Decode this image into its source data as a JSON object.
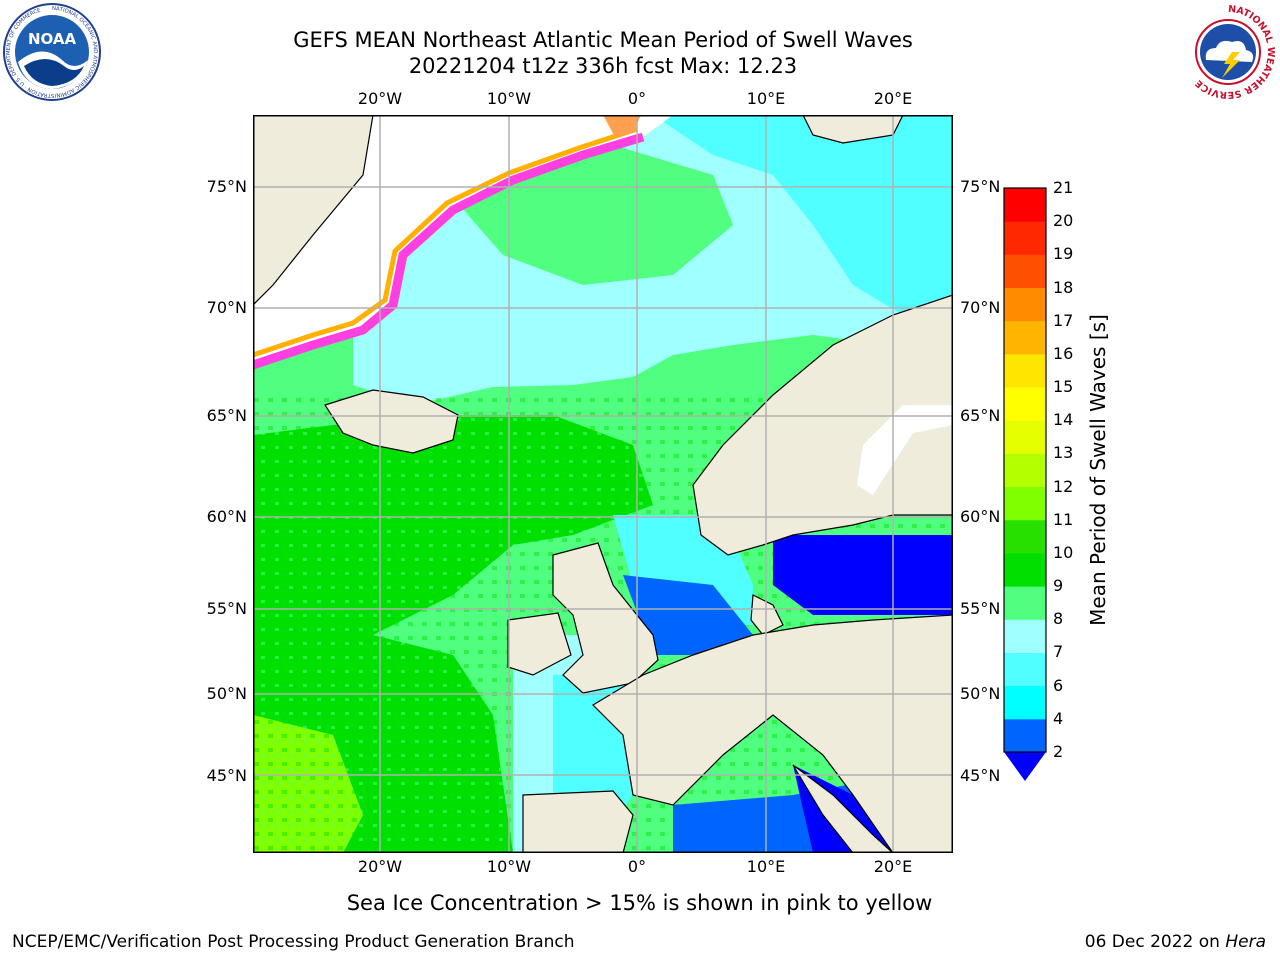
{
  "header": {
    "title_line1": "GEFS MEAN Northeast Atlantic Mean Period of Swell Waves",
    "title_line2": "20221204 t12z 336h fcst   Max: 12.23"
  },
  "logos": {
    "left": "noaa-logo",
    "right": "nws-logo",
    "left_text": "NOAA",
    "left_ring": "NATIONAL OCEANIC AND ATMOSPHERIC ADMINISTRATION · U.S. DEPARTMENT OF COMMERCE",
    "right_ring": "NATIONAL WEATHER SERVICE"
  },
  "map": {
    "lon_ticks": [
      "20°W",
      "10°W",
      "0°",
      "10°E",
      "20°E"
    ],
    "lat_ticks": [
      "75°N",
      "70°N",
      "65°N",
      "60°N",
      "55°N",
      "50°N",
      "45°N"
    ],
    "land_color": "#efecdc",
    "coast_color": "#000000",
    "grid_color": "#b0b0b0",
    "no_data_color": "#ffffff"
  },
  "colorbar": {
    "title": "Mean Period of Swell Waves [s]",
    "levels": [
      "2",
      "4",
      "6",
      "7",
      "8",
      "9",
      "10",
      "11",
      "12",
      "13",
      "14",
      "15",
      "16",
      "17",
      "18",
      "19",
      "20",
      "21"
    ],
    "colors": [
      "#0064ff",
      "#00c8ff",
      "#00ffff",
      "#50ffff",
      "#a0ffff",
      "#50ff80",
      "#00e000",
      "#28e000",
      "#80ff00",
      "#b4ff00",
      "#e6ff00",
      "#ffff00",
      "#ffe600",
      "#ffb400",
      "#ff8c00",
      "#ff5000",
      "#ff2800",
      "#ff0000"
    ],
    "under_color": "#0000ff"
  },
  "notes": {
    "ice": "Sea Ice Concentration > 15% is shown in pink to yellow"
  },
  "footer": {
    "left": "NCEP/EMC/Verification Post Processing Product Generation Branch",
    "date": "06 Dec 2022 on ",
    "machine": "Hera"
  }
}
